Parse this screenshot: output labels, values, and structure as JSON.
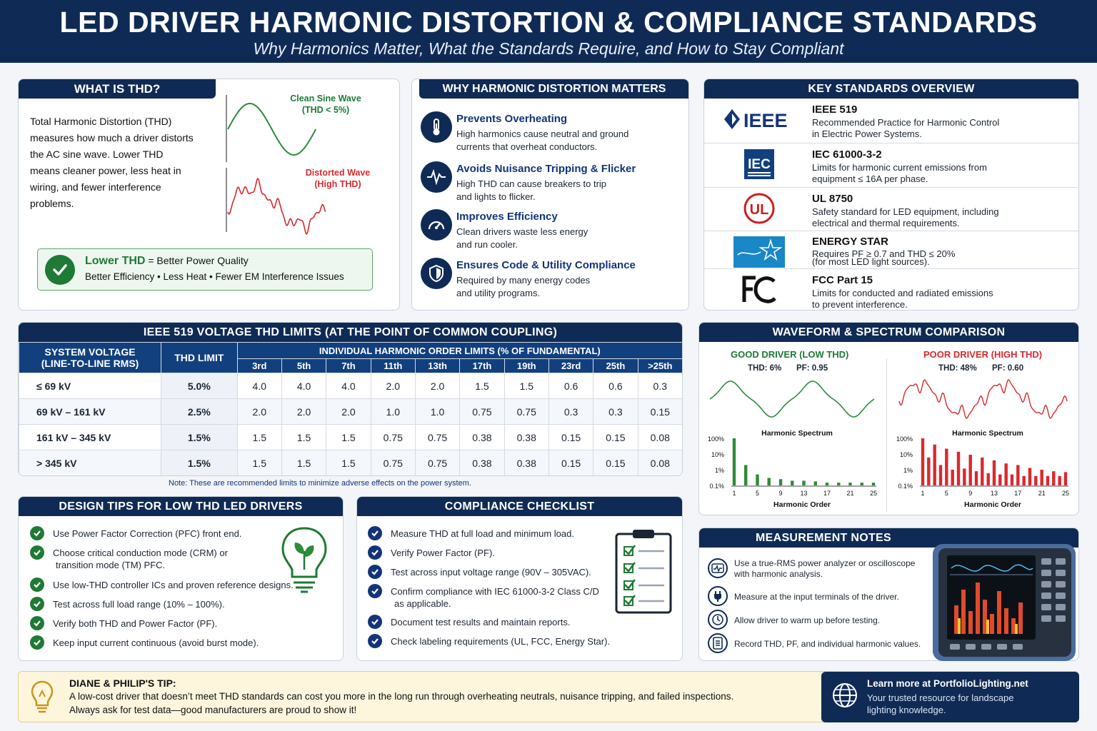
{
  "header": {
    "title": "LED DRIVER HARMONIC DISTORTION & COMPLIANCE STANDARDS",
    "subtitle": "Why Harmonics Matter, What the Standards Require, and How to Stay Compliant"
  },
  "thd": {
    "title": "WHAT IS THD?",
    "body": "Total Harmonic Distortion (THD) measures how much a driver distorts the AC sine wave. Lower THD means cleaner power, less heat in wiring, and fewer interference problems.",
    "clean_label_1": "Clean Sine Wave",
    "clean_label_2": "(THD < 5%)",
    "distorted_label_1": "Distorted Wave",
    "distorted_label_2": "(High THD)",
    "callout_head": "Lower THD",
    "callout_head_rest": "= Better Power Quality",
    "callout_sub": "Better Efficiency • Less Heat • Fewer EM Interference Issues"
  },
  "why": {
    "title": "WHY HARMONIC DISTORTION MATTERS",
    "items": [
      {
        "icon": "thermometer-icon",
        "head": "Prevents Overheating",
        "l1": "High harmonics cause neutral and ground",
        "l2": "currents that overheat conductors."
      },
      {
        "icon": "waveform-icon",
        "head": "Avoids Nuisance Tripping & Flicker",
        "l1": "High THD can cause breakers to trip",
        "l2": "and lights to flicker."
      },
      {
        "icon": "gauge-icon",
        "head": "Improves Efficiency",
        "l1": "Clean drivers waste less energy",
        "l2": "and run cooler."
      },
      {
        "icon": "shield-icon",
        "head": "Ensures Code & Utility Compliance",
        "l1": "Required by many energy codes",
        "l2": "and utility programs."
      }
    ]
  },
  "standards": {
    "title": "KEY STANDARDS OVERVIEW",
    "items": [
      {
        "logo": "IEEE",
        "name": "IEEE 519",
        "l1": "Recommended Practice for Harmonic Control",
        "l2": "in Electric Power Systems."
      },
      {
        "logo": "IEC",
        "name": "IEC 61000-3-2",
        "l1": "Limits for harmonic current emissions from",
        "l2": "equipment ≤ 16A per phase."
      },
      {
        "logo": "UL",
        "name": "UL 8750",
        "l1": "Safety standard for LED equipment, including",
        "l2": "electrical and thermal requirements."
      },
      {
        "logo": "energy",
        "name": "ENERGY STAR",
        "l1": "Requires PF ≥ 0.7 and THD ≤ 20%",
        "l2": "(for most LED light sources)."
      },
      {
        "logo": "FC",
        "name": "FCC Part 15",
        "l1": "Limits for conducted and radiated emissions",
        "l2": "to prevent interference."
      }
    ]
  },
  "ieee_table": {
    "title": "IEEE 519 VOLTAGE THD LIMITS (AT THE POINT OF COMMON COUPLING)",
    "col_voltage_1": "SYSTEM VOLTAGE",
    "col_voltage_2": "(LINE-TO-LINE RMS)",
    "col_thd": "THD LIMIT",
    "col_group": "INDIVIDUAL HARMONIC ORDER LIMITS (% OF FUNDAMENTAL)",
    "orders": [
      "3rd",
      "5th",
      "7th",
      "11th",
      "13th",
      "17th",
      "19th",
      "23rd",
      "25th",
      ">25th"
    ],
    "rows": [
      {
        "voltage": "≤ 69 kV",
        "thd": "5.0%",
        "vals": [
          "4.0",
          "4.0",
          "4.0",
          "2.0",
          "2.0",
          "1.5",
          "1.5",
          "0.6",
          "0.6",
          "0.3"
        ]
      },
      {
        "voltage": "69 kV – 161 kV",
        "thd": "2.5%",
        "vals": [
          "2.0",
          "2.0",
          "2.0",
          "1.0",
          "1.0",
          "0.75",
          "0.75",
          "0.3",
          "0.3",
          "0.15"
        ]
      },
      {
        "voltage": "161 kV – 345 kV",
        "thd": "1.5%",
        "vals": [
          "1.5",
          "1.5",
          "1.5",
          "0.75",
          "0.75",
          "0.38",
          "0.38",
          "0.15",
          "0.15",
          "0.08"
        ]
      },
      {
        "voltage": "> 345 kV",
        "thd": "1.5%",
        "vals": [
          "1.5",
          "1.5",
          "1.5",
          "0.75",
          "0.75",
          "0.38",
          "0.38",
          "0.15",
          "0.15",
          "0.08"
        ]
      }
    ],
    "note": "Note: These are recommended limits to minimize adverse effects on the power system."
  },
  "waveform": {
    "title": "WAVEFORM & SPECTRUM COMPARISON",
    "good_title": "GOOD DRIVER (LOW THD)",
    "good_thd": "THD: 6%",
    "good_pf": "PF: 0.95",
    "poor_title": "POOR DRIVER (HIGH THD)",
    "poor_thd": "THD: 48%",
    "poor_pf": "PF: 0.60",
    "spectrum_label": "Harmonic Spectrum",
    "x_label": "Harmonic Order",
    "y_ticks": [
      "100%",
      "10%",
      "1%",
      "0.1%"
    ],
    "x_ticks": [
      "1",
      "5",
      "9",
      "13",
      "17",
      "21",
      "25"
    ]
  },
  "chart_data": [
    {
      "type": "bar",
      "name_printed": "Harmonic Spectrum",
      "scale": "log",
      "ylim": [
        0.1,
        100
      ],
      "x": [
        1,
        3,
        5,
        7,
        9,
        11,
        13,
        15,
        17,
        19,
        21,
        23,
        25
      ],
      "values": [
        100,
        2,
        0.5,
        0.3,
        0.25,
        0.2,
        0.2,
        0.18,
        0.15,
        0.15,
        0.15,
        0.15,
        0.15
      ],
      "color": "#2e8b3a"
    },
    {
      "type": "bar",
      "name_printed": "Harmonic Spectrum",
      "scale": "log",
      "ylim": [
        0.1,
        100
      ],
      "x": [
        1,
        2,
        3,
        4,
        5,
        6,
        7,
        8,
        9,
        10,
        11,
        12,
        13,
        14,
        15,
        16,
        17,
        18,
        19,
        20,
        21,
        22,
        23,
        24,
        25
      ],
      "values": [
        100,
        6,
        40,
        2,
        22,
        1,
        14,
        1.2,
        9,
        0.8,
        6,
        0.6,
        4,
        0.5,
        2.5,
        0.5,
        2,
        0.4,
        1.3,
        0.4,
        1,
        0.4,
        0.8,
        0.4,
        0.7
      ],
      "color": "#d9292e"
    }
  ],
  "design": {
    "title": "DESIGN TIPS FOR LOW THD LED DRIVERS",
    "items": [
      {
        "l1": "Use Power Factor Correction (PFC) front end.",
        "l2": ""
      },
      {
        "l1": "Choose critical conduction mode (CRM) or",
        "l2": "transition mode (TM) PFC."
      },
      {
        "l1": "Use low-THD controller ICs and proven reference designs.",
        "l2": ""
      },
      {
        "l1": "Test across full load range (10% – 100%).",
        "l2": ""
      },
      {
        "l1": "Verify both THD and Power Factor (PF).",
        "l2": ""
      },
      {
        "l1": "Keep input current continuous (avoid burst mode).",
        "l2": ""
      }
    ]
  },
  "checklist": {
    "title": "COMPLIANCE CHECKLIST",
    "items": [
      {
        "l1": "Measure THD at full load and minimum load.",
        "l2": ""
      },
      {
        "l1": "Verify Power Factor (PF).",
        "l2": ""
      },
      {
        "l1": "Test across input voltage range (90V – 305VAC).",
        "l2": ""
      },
      {
        "l1": "Confirm compliance with IEC 61000-3-2 Class C/D",
        "l2": "as applicable."
      },
      {
        "l1": "Document test results and maintain reports.",
        "l2": ""
      },
      {
        "l1": "Check labeling requirements (UL, FCC, Energy Star).",
        "l2": ""
      }
    ]
  },
  "measure": {
    "title": "MEASUREMENT NOTES",
    "items": [
      {
        "icon": "analyzer-icon",
        "l1": "Use a true-RMS power analyzer or oscilloscope",
        "l2": "with harmonic analysis."
      },
      {
        "icon": "plug-icon",
        "l1": "Measure at the input terminals of the driver.",
        "l2": ""
      },
      {
        "icon": "clock-icon",
        "l1": "Allow driver to warm up before testing.",
        "l2": ""
      },
      {
        "icon": "document-icon",
        "l1": "Record THD, PF, and individual harmonic values.",
        "l2": ""
      }
    ]
  },
  "tip": {
    "title": "DIANE & PHILIP'S TIP:",
    "l1": "A low-cost driver that doesn’t meet THD standards can cost you more in the long run through overheating neutrals, nuisance tripping, and failed inspections.",
    "l2": "Always ask for test data—good manufacturers are proud to show it!"
  },
  "learn": {
    "head": "Learn more at PortfolioLighting.net",
    "l1": "Your trusted resource for landscape",
    "l2": "lighting knowledge."
  }
}
